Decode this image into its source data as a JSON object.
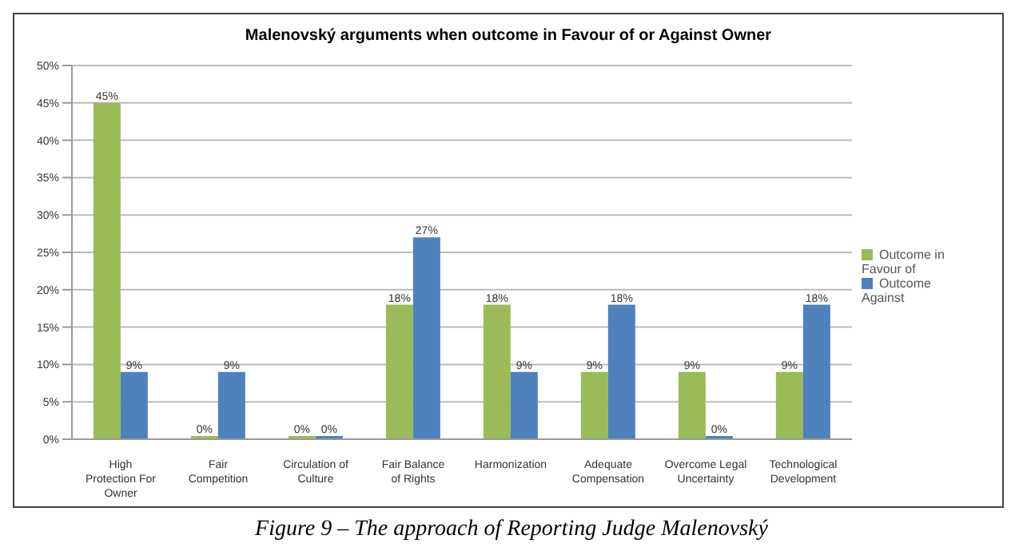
{
  "chart_data": {
    "type": "bar",
    "title": "Malenovský  arguments when outcome in Favour of or Against Owner",
    "categories": [
      "High Protection For Owner",
      "Fair Competition",
      "Circulation of Culture",
      "Fair Balance of Rights",
      "Harmonization",
      "Adequate Compensation",
      "Overcome Legal Uncertainty",
      "Technological Development"
    ],
    "series": [
      {
        "name": "Outcome in Favour of",
        "color": "#9bbb59",
        "values": [
          45,
          0,
          0,
          18,
          18,
          9,
          9,
          9
        ],
        "value_labels": [
          "45%",
          "0%",
          "0%",
          "18%",
          "18%",
          "9%",
          "9%",
          "9%"
        ]
      },
      {
        "name": "Outcome Against",
        "color": "#4f81bd",
        "values": [
          9,
          9,
          0,
          27,
          9,
          18,
          0,
          18
        ],
        "value_labels": [
          "9%",
          "9%",
          "0%",
          "27%",
          "9%",
          "18%",
          "0%",
          "18%"
        ]
      }
    ],
    "ylim": [
      0,
      50
    ],
    "yticks": [
      {
        "value": 0,
        "label": "0%"
      },
      {
        "value": 5,
        "label": "5%"
      },
      {
        "value": 10,
        "label": "10%"
      },
      {
        "value": 15,
        "label": "15%"
      },
      {
        "value": 20,
        "label": "20%"
      },
      {
        "value": 25,
        "label": "25%"
      },
      {
        "value": 30,
        "label": "30%"
      },
      {
        "value": 35,
        "label": "35%"
      },
      {
        "value": 40,
        "label": "40%"
      },
      {
        "value": 45,
        "label": "45%"
      },
      {
        "value": 50,
        "label": "50%"
      }
    ],
    "grid": "y",
    "legend": "right",
    "annotations": [
      "Figure 9 – The approach of Reporting Judge Malenovský"
    ]
  }
}
